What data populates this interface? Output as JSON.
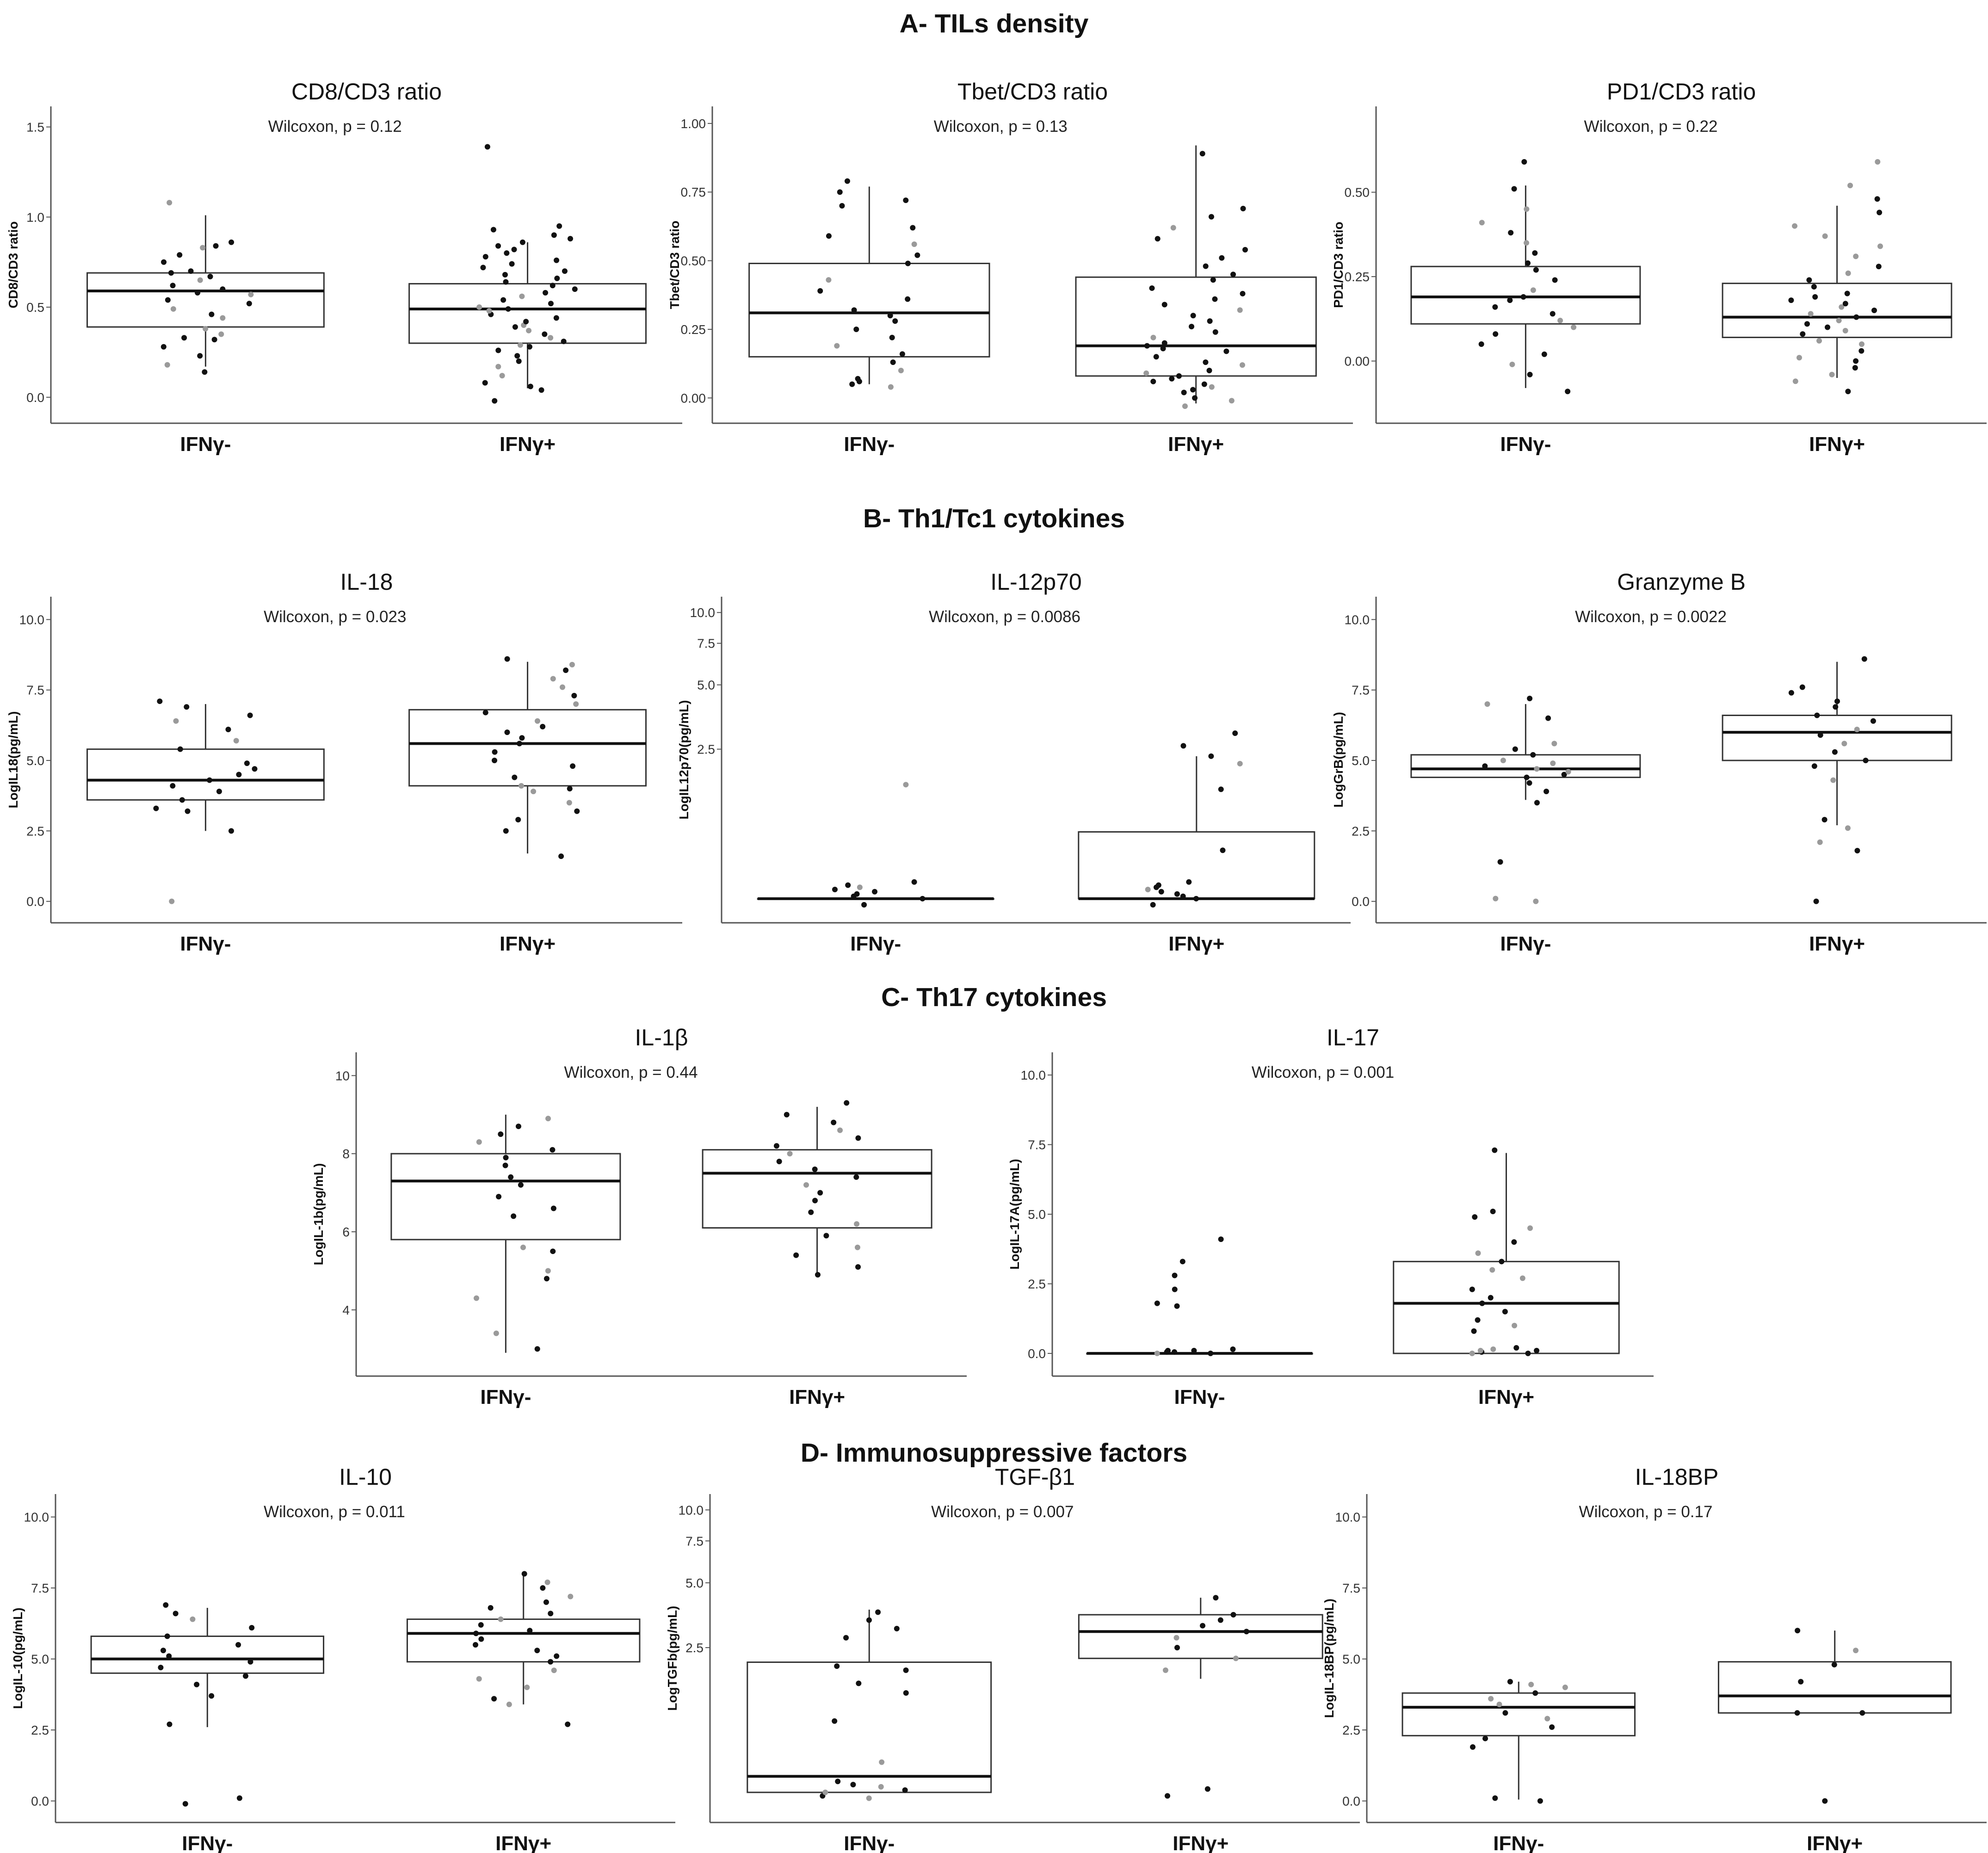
{
  "sections": [
    {
      "title": "A- TILs density"
    },
    {
      "title": "B- Th1/Tc1 cytokines"
    },
    {
      "title": "C- Th17 cytokines"
    },
    {
      "title": "D- Immunosuppressive factors"
    }
  ],
  "chart_data": [
    {
      "type": "box",
      "title": "CD8/CD3  ratio",
      "subtitle": "Wilcoxon, p = 0.12",
      "ylabel": "CD8/CD3 ratio",
      "categories": [
        "IFNγ-",
        "IFNγ+"
      ],
      "ylim": [
        -0.08,
        1.55
      ],
      "yticks": [
        "0.0",
        "0.5",
        "1.0",
        "1.5"
      ],
      "ytick_values": [
        0,
        0.5,
        1.0,
        1.5
      ],
      "yscale": "linear",
      "boxes": [
        {
          "q1": 0.39,
          "median": 0.59,
          "q3": 0.69,
          "whisker_low": 0.17,
          "whisker_high": 1.01
        },
        {
          "q1": 0.3,
          "median": 0.49,
          "q3": 0.63,
          "whisker_low": 0.05,
          "whisker_high": 0.86
        }
      ],
      "points": [
        [
          0.14,
          0.18,
          0.23,
          0.28,
          0.32,
          0.33,
          0.35,
          0.38,
          0.44,
          0.46,
          0.49,
          0.52,
          0.54,
          0.57,
          0.58,
          0.6,
          0.62,
          0.65,
          0.67,
          0.69,
          0.7,
          0.75,
          0.79,
          0.83,
          0.84,
          0.86,
          1.08
        ],
        [
          -0.02,
          0.04,
          0.06,
          0.08,
          0.12,
          0.17,
          0.2,
          0.23,
          0.26,
          0.28,
          0.29,
          0.31,
          0.33,
          0.35,
          0.37,
          0.39,
          0.4,
          0.42,
          0.44,
          0.46,
          0.48,
          0.49,
          0.5,
          0.52,
          0.54,
          0.56,
          0.58,
          0.6,
          0.62,
          0.64,
          0.66,
          0.68,
          0.7,
          0.72,
          0.74,
          0.76,
          0.78,
          0.8,
          0.82,
          0.84,
          0.86,
          0.88,
          0.9,
          0.93,
          0.95,
          1.39
        ]
      ]
    },
    {
      "type": "box",
      "title": "Tbet/CD3 ratio",
      "subtitle": "Wilcoxon, p = 0.13",
      "ylabel": "Tbet/CD3 ratio",
      "categories": [
        "IFNγ-",
        "IFNγ+"
      ],
      "ylim": [
        -0.05,
        1.02
      ],
      "yticks": [
        "0.00",
        "0.25",
        "0.50",
        "0.75",
        "1.00"
      ],
      "ytick_values": [
        0,
        0.25,
        0.5,
        0.75,
        1.0
      ],
      "yscale": "linear",
      "boxes": [
        {
          "q1": 0.15,
          "median": 0.31,
          "q3": 0.49,
          "whisker_low": 0.05,
          "whisker_high": 0.77
        },
        {
          "q1": 0.08,
          "median": 0.19,
          "q3": 0.44,
          "whisker_low": -0.02,
          "whisker_high": 0.92
        }
      ],
      "points": [
        [
          0.04,
          0.05,
          0.06,
          0.07,
          0.1,
          0.13,
          0.16,
          0.19,
          0.22,
          0.25,
          0.28,
          0.3,
          0.32,
          0.36,
          0.39,
          0.43,
          0.49,
          0.52,
          0.56,
          0.59,
          0.62,
          0.7,
          0.72,
          0.75,
          0.79
        ],
        [
          -0.03,
          -0.01,
          0.0,
          0.02,
          0.03,
          0.04,
          0.05,
          0.06,
          0.07,
          0.08,
          0.09,
          0.1,
          0.12,
          0.13,
          0.15,
          0.17,
          0.18,
          0.19,
          0.2,
          0.22,
          0.24,
          0.26,
          0.28,
          0.3,
          0.32,
          0.34,
          0.36,
          0.38,
          0.4,
          0.43,
          0.45,
          0.48,
          0.51,
          0.54,
          0.58,
          0.62,
          0.66,
          0.69,
          0.89
        ]
      ]
    },
    {
      "type": "box",
      "title": "PD1/CD3 ratio",
      "subtitle": "Wilcoxon, p = 0.22",
      "ylabel": "PD1/CD3 ratio",
      "categories": [
        "IFNγ-",
        "IFNγ+"
      ],
      "ylim": [
        -0.15,
        0.72
      ],
      "yticks": [
        "0.00",
        "0.25",
        "0.50"
      ],
      "ytick_values": [
        0,
        0.25,
        0.5
      ],
      "yscale": "linear",
      "boxes": [
        {
          "q1": 0.11,
          "median": 0.19,
          "q3": 0.28,
          "whisker_low": -0.08,
          "whisker_high": 0.52
        },
        {
          "q1": 0.07,
          "median": 0.13,
          "q3": 0.23,
          "whisker_low": -0.05,
          "whisker_high": 0.46
        }
      ],
      "points": [
        [
          -0.09,
          -0.04,
          -0.01,
          0.02,
          0.05,
          0.08,
          0.1,
          0.12,
          0.14,
          0.16,
          0.18,
          0.19,
          0.21,
          0.24,
          0.27,
          0.29,
          0.32,
          0.35,
          0.38,
          0.41,
          0.45,
          0.51,
          0.59
        ],
        [
          -0.09,
          -0.06,
          -0.04,
          -0.02,
          0.0,
          0.01,
          0.03,
          0.05,
          0.06,
          0.08,
          0.09,
          0.1,
          0.11,
          0.12,
          0.13,
          0.14,
          0.15,
          0.16,
          0.17,
          0.18,
          0.19,
          0.2,
          0.22,
          0.24,
          0.26,
          0.28,
          0.31,
          0.34,
          0.37,
          0.4,
          0.44,
          0.48,
          0.52,
          0.59
        ]
      ]
    },
    {
      "type": "box",
      "title": "IL-18",
      "subtitle": "Wilcoxon, p = 0.023",
      "ylabel": "LogIL18(pg/mL)",
      "categories": [
        "IFNγ-",
        "IFNγ+"
      ],
      "ylim": [
        -0.35,
        10.4
      ],
      "yticks": [
        "0.0",
        "2.5",
        "5.0",
        "7.5",
        "10.0"
      ],
      "ytick_values": [
        0,
        2.5,
        5,
        7.5,
        10
      ],
      "yscale": "linear",
      "boxes": [
        {
          "q1": 3.6,
          "median": 4.3,
          "q3": 5.4,
          "whisker_low": 2.5,
          "whisker_high": 7.0
        },
        {
          "q1": 4.1,
          "median": 5.6,
          "q3": 6.8,
          "whisker_low": 1.7,
          "whisker_high": 8.5
        }
      ],
      "points": [
        [
          0.0,
          2.5,
          3.2,
          3.3,
          3.6,
          3.9,
          4.1,
          4.3,
          4.5,
          4.7,
          4.9,
          5.4,
          5.7,
          6.1,
          6.4,
          6.6,
          6.9,
          7.1
        ],
        [
          1.6,
          2.5,
          2.9,
          3.2,
          3.5,
          3.9,
          4.0,
          4.1,
          4.4,
          4.8,
          5.0,
          5.3,
          5.6,
          5.8,
          6.0,
          6.2,
          6.4,
          6.7,
          7.0,
          7.3,
          7.6,
          7.9,
          8.2,
          8.4,
          8.6
        ]
      ]
    },
    {
      "type": "box",
      "title": "IL-12p70",
      "subtitle": "Wilcoxon, p = 0.0086",
      "ylabel": "LogIL12p70(pg/mL)",
      "categories": [
        "IFNγ-",
        "IFNγ+"
      ],
      "ylim": [
        -0.1,
        10.4
      ],
      "yticks": [
        "2.5",
        "5.0",
        "7.5",
        "10.0"
      ],
      "ytick_values": [
        2.5,
        5,
        7.5,
        10
      ],
      "yscale": "log1p",
      "boxes": [
        {
          "q1": 0.0,
          "median": 0.0,
          "q3": 0.0,
          "whisker_low": 0.0,
          "whisker_high": 0.0
        },
        {
          "q1": 0.0,
          "median": 0.0,
          "q3": 0.75,
          "whisker_low": 0.0,
          "whisker_high": 2.3
        }
      ],
      "points": [
        [
          -0.05,
          0.0,
          0.02,
          0.04,
          0.06,
          0.08,
          0.1,
          0.12,
          0.15,
          1.6
        ],
        [
          -0.05,
          0.0,
          0.02,
          0.04,
          0.06,
          0.08,
          0.1,
          0.12,
          0.15,
          0.5,
          1.5,
          2.1,
          2.3,
          2.6,
          3.0
        ]
      ]
    },
    {
      "type": "box",
      "title": "Granzyme B",
      "subtitle": "Wilcoxon, p = 0.0022",
      "ylabel": "LogGrB(pg/mL)",
      "categories": [
        "IFNγ-",
        "IFNγ+"
      ],
      "ylim": [
        -0.35,
        10.4
      ],
      "yticks": [
        "0.0",
        "2.5",
        "5.0",
        "7.5",
        "10.0"
      ],
      "ytick_values": [
        0,
        2.5,
        5,
        7.5,
        10
      ],
      "yscale": "linear",
      "boxes": [
        {
          "q1": 4.4,
          "median": 4.7,
          "q3": 5.2,
          "whisker_low": 3.6,
          "whisker_high": 7.0
        },
        {
          "q1": 5.0,
          "median": 6.0,
          "q3": 6.6,
          "whisker_low": 2.7,
          "whisker_high": 8.5
        }
      ],
      "points": [
        [
          0.0,
          0.1,
          1.4,
          3.5,
          3.9,
          4.2,
          4.4,
          4.5,
          4.6,
          4.7,
          4.8,
          4.9,
          5.0,
          5.2,
          5.4,
          5.6,
          6.5,
          7.0,
          7.2
        ],
        [
          0.0,
          1.8,
          2.1,
          2.6,
          2.9,
          4.3,
          4.8,
          5.0,
          5.3,
          5.6,
          5.9,
          6.1,
          6.4,
          6.6,
          6.9,
          7.1,
          7.4,
          7.6,
          8.6
        ]
      ]
    },
    {
      "type": "box",
      "title": "IL-1β",
      "subtitle": "Wilcoxon, p = 0.44",
      "ylabel": "LogIL-1b(pg/mL)",
      "categories": [
        "IFNγ-",
        "IFNγ+"
      ],
      "ylim": [
        2.6,
        10.3
      ],
      "yticks": [
        "4",
        "6",
        "8",
        "10"
      ],
      "ytick_values": [
        4,
        6,
        8,
        10
      ],
      "yscale": "linear",
      "boxes": [
        {
          "q1": 5.8,
          "median": 7.3,
          "q3": 8.0,
          "whisker_low": 2.9,
          "whisker_high": 9.0
        },
        {
          "q1": 6.1,
          "median": 7.5,
          "q3": 8.1,
          "whisker_low": 4.9,
          "whisker_high": 9.2
        }
      ],
      "points": [
        [
          3.0,
          3.4,
          4.3,
          4.8,
          5.0,
          5.5,
          5.6,
          6.4,
          6.6,
          6.9,
          7.2,
          7.4,
          7.7,
          7.9,
          8.1,
          8.3,
          8.5,
          8.7,
          8.9
        ],
        [
          4.9,
          5.1,
          5.4,
          5.6,
          5.9,
          6.2,
          6.5,
          6.8,
          7.0,
          7.2,
          7.4,
          7.6,
          7.8,
          8.0,
          8.2,
          8.4,
          8.6,
          8.8,
          9.0,
          9.3
        ]
      ]
    },
    {
      "type": "box",
      "title": "IL-17",
      "subtitle": "Wilcoxon, p = 0.001",
      "ylabel": "LogIL-17A(pg/mL)",
      "categories": [
        "IFNγ-",
        "IFNγ+"
      ],
      "ylim": [
        -0.4,
        10.4
      ],
      "yticks": [
        "0.0",
        "2.5",
        "5.0",
        "7.5",
        "10.0"
      ],
      "ytick_values": [
        0,
        2.5,
        5,
        7.5,
        10
      ],
      "yscale": "linear",
      "boxes": [
        {
          "q1": 0.0,
          "median": 0.0,
          "q3": 0.0,
          "whisker_low": 0.0,
          "whisker_high": 0.0
        },
        {
          "q1": 0.0,
          "median": 1.8,
          "q3": 3.3,
          "whisker_low": 0.0,
          "whisker_high": 7.2
        }
      ],
      "points": [
        [
          0.0,
          0.0,
          0.05,
          0.05,
          0.1,
          0.1,
          0.15,
          1.7,
          1.8,
          2.3,
          2.8,
          3.3,
          4.1
        ],
        [
          0.0,
          0.0,
          0.05,
          0.1,
          0.1,
          0.15,
          0.2,
          0.8,
          1.0,
          1.2,
          1.5,
          1.8,
          2.0,
          2.3,
          2.7,
          3.0,
          3.3,
          3.6,
          4.0,
          4.5,
          4.9,
          5.1,
          7.3
        ]
      ]
    },
    {
      "type": "box",
      "title": "IL-10",
      "subtitle": "Wilcoxon, p = 0.011",
      "ylabel": "LogIL-10(pg/mL)",
      "categories": [
        "IFNγ-",
        "IFNγ+"
      ],
      "ylim": [
        -0.35,
        10.4
      ],
      "yticks": [
        "0.0",
        "2.5",
        "5.0",
        "7.5",
        "10.0"
      ],
      "ytick_values": [
        0,
        2.5,
        5,
        7.5,
        10
      ],
      "yscale": "linear",
      "boxes": [
        {
          "q1": 4.5,
          "median": 5.0,
          "q3": 5.8,
          "whisker_low": 2.6,
          "whisker_high": 6.8
        },
        {
          "q1": 4.9,
          "median": 5.9,
          "q3": 6.4,
          "whisker_low": 3.4,
          "whisker_high": 8.0
        }
      ],
      "points": [
        [
          -0.1,
          0.1,
          2.7,
          3.7,
          4.1,
          4.4,
          4.7,
          4.9,
          5.1,
          5.3,
          5.5,
          5.8,
          6.1,
          6.4,
          6.6,
          6.9
        ],
        [
          2.7,
          3.4,
          3.6,
          4.0,
          4.3,
          4.6,
          4.9,
          5.1,
          5.3,
          5.5,
          5.7,
          5.9,
          6.0,
          6.2,
          6.4,
          6.6,
          6.8,
          7.0,
          7.2,
          7.5,
          7.7,
          8.0
        ]
      ]
    },
    {
      "type": "box",
      "title": "TGF-β1",
      "subtitle": "Wilcoxon, p = 0.007",
      "ylabel": "LogTGFb(pg/mL)",
      "categories": [
        "IFNγ-",
        "IFNγ+"
      ],
      "ylim": [
        -0.1,
        10.4
      ],
      "yticks": [
        "2.5",
        "5.0",
        "7.5",
        "10.0"
      ],
      "ytick_values": [
        2.5,
        5,
        7.5,
        10
      ],
      "yscale": "log1p",
      "boxes": [
        {
          "q1": 0.05,
          "median": 0.2,
          "q3": 2.1,
          "whisker_low": 0.05,
          "whisker_high": 3.8
        },
        {
          "q1": 2.2,
          "median": 3.0,
          "q3": 3.6,
          "whisker_low": 1.7,
          "whisker_high": 4.3
        }
      ],
      "points": [
        [
          0.0,
          0.02,
          0.05,
          0.07,
          0.1,
          0.12,
          0.15,
          0.35,
          0.9,
          1.4,
          1.6,
          1.9,
          2.0,
          2.8,
          3.1,
          3.4,
          3.7
        ],
        [
          0.02,
          0.08,
          1.9,
          2.2,
          2.5,
          2.8,
          3.0,
          3.2,
          3.4,
          3.6,
          4.3
        ]
      ]
    },
    {
      "type": "box",
      "title": "IL-18BP",
      "subtitle": "Wilcoxon, p = 0.17",
      "ylabel": "LogIL-18BP(pg/mL)",
      "categories": [
        "IFNγ-",
        "IFNγ+"
      ],
      "ylim": [
        -0.35,
        10.4
      ],
      "yticks": [
        "0.0",
        "2.5",
        "5.0",
        "7.5",
        "10.0"
      ],
      "ytick_values": [
        0,
        2.5,
        5,
        7.5,
        10
      ],
      "yscale": "linear",
      "boxes": [
        {
          "q1": 2.3,
          "median": 3.3,
          "q3": 3.8,
          "whisker_low": 0.05,
          "whisker_high": 4.2
        },
        {
          "q1": 3.1,
          "median": 3.7,
          "q3": 4.9,
          "whisker_low": 3.1,
          "whisker_high": 6.0
        }
      ],
      "points": [
        [
          0.0,
          0.1,
          1.9,
          2.2,
          2.6,
          2.9,
          3.1,
          3.4,
          3.6,
          3.8,
          4.0,
          4.1,
          4.2
        ],
        [
          0.0,
          3.1,
          3.1,
          4.2,
          4.8,
          5.3,
          6.0
        ]
      ]
    }
  ]
}
